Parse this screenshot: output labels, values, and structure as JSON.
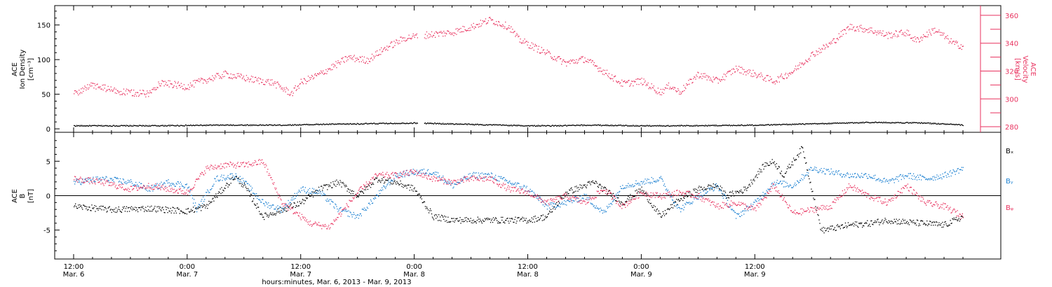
{
  "colors": {
    "black": "#000000",
    "red": "#e8325f",
    "blue": "#1e82d2"
  },
  "xaxis": {
    "title": "hours:minutes, Mar. 6, 2013 - Mar. 9, 2013",
    "ticks": [
      {
        "time": "12:00",
        "date": "Mar. 6"
      },
      {
        "time": "0:00",
        "date": "Mar. 7"
      },
      {
        "time": "12:00",
        "date": "Mar. 7"
      },
      {
        "time": "0:00",
        "date": "Mar. 8"
      },
      {
        "time": "12:00",
        "date": "Mar. 8"
      },
      {
        "time": "0:00",
        "date": "Mar. 9"
      },
      {
        "time": "12:00",
        "date": "Mar. 9"
      }
    ]
  },
  "chart_data": [
    {
      "type": "scatter",
      "xrange_hours": [
        -2.0,
        98.0
      ],
      "ylabel_left": [
        "ACE",
        "Ion Density",
        "[cm⁻³]"
      ],
      "ylabel_right": [
        "ACE",
        "Velocity",
        "[km/s]"
      ],
      "left_axis": {
        "ylim": [
          -5,
          178
        ],
        "ticks": [
          "0",
          "50",
          "100",
          "150"
        ]
      },
      "right_axis": {
        "ylim": [
          276,
          367
        ],
        "ticks": [
          "280",
          "300",
          "320",
          "340",
          "360"
        ]
      },
      "series": [
        {
          "axis": "left",
          "color": "black",
          "x_hours": [
            0,
            8,
            16,
            22,
            26,
            31,
            36,
            42,
            48,
            51,
            55,
            60,
            64,
            72,
            79,
            84,
            90,
            94
          ],
          "values": [
            5,
            5,
            6,
            6,
            7,
            8,
            9,
            7,
            5,
            5,
            6,
            5,
            5,
            6,
            8,
            10,
            9,
            6
          ]
        },
        {
          "axis": "right",
          "color": "red",
          "x_hours": [
            0,
            2,
            5,
            8,
            9,
            12,
            13,
            16,
            19,
            21,
            23,
            24,
            26,
            27,
            29,
            31,
            33,
            35,
            37,
            40,
            42,
            44,
            46,
            47,
            50,
            52,
            54,
            56,
            58,
            60,
            62,
            63,
            64,
            66,
            68,
            70,
            72,
            74,
            76,
            78,
            80,
            82,
            84,
            86,
            88,
            89,
            91,
            93,
            94
          ],
          "values": [
            304,
            310,
            305,
            304,
            312,
            309,
            312,
            318,
            314,
            312,
            304,
            312,
            318,
            322,
            330,
            328,
            337,
            344,
            346,
            348,
            352,
            357,
            352,
            343,
            333,
            326,
            329,
            320,
            311,
            313,
            305,
            310,
            305,
            318,
            313,
            322,
            318,
            313,
            320,
            332,
            340,
            352,
            350,
            346,
            348,
            342,
            350,
            340,
            338
          ]
        }
      ]
    },
    {
      "type": "scatter",
      "xrange_hours": [
        -2.0,
        98.0
      ],
      "ylabel_left": [
        "ACE",
        "B",
        "[nT]"
      ],
      "left_axis": {
        "ylim": [
          -9.2,
          9.2
        ],
        "ticks": [
          "-5",
          "0",
          "5"
        ]
      },
      "legend": [
        "Bₓ",
        "Bᵧ",
        "Bᵩ"
      ],
      "series": [
        {
          "name": "Bₓ",
          "color": "black",
          "x_hours": [
            0,
            4,
            8,
            12,
            14,
            17,
            18,
            20,
            22,
            24,
            26,
            28,
            30,
            32,
            34,
            36,
            38,
            40,
            44,
            48,
            50,
            52,
            55,
            58,
            60,
            62,
            64,
            66,
            68,
            69,
            71,
            73,
            74,
            75,
            77,
            79,
            81,
            82,
            84,
            86,
            88,
            90,
            92,
            94
          ],
          "values": [
            -1.5,
            -2.0,
            -1.8,
            -2.2,
            -1.5,
            2.8,
            1.5,
            -3.0,
            -2.0,
            -1.0,
            1.0,
            2.0,
            0.0,
            2.5,
            2.0,
            1.0,
            -3.0,
            -3.5,
            -3.5,
            -3.5,
            -3.0,
            0.5,
            2.0,
            -1.0,
            1.0,
            -3.0,
            -0.5,
            1.0,
            1.5,
            0.0,
            1.0,
            4.5,
            5.0,
            3.0,
            7.0,
            -5.0,
            -4.5,
            -4.2,
            -4.0,
            -3.5,
            -3.8,
            -4.0,
            -4.2,
            -3.0
          ]
        },
        {
          "name": "Bᵧ",
          "color": "blue",
          "x_hours": [
            0,
            3,
            6,
            8,
            10,
            12,
            13,
            15,
            17,
            18,
            20,
            22,
            24,
            26,
            28,
            30,
            32,
            34,
            36,
            38,
            40,
            42,
            44,
            46,
            48,
            50,
            52,
            54,
            56,
            58,
            60,
            62,
            64,
            66,
            68,
            70,
            72,
            74,
            76,
            78,
            80,
            82,
            84,
            86,
            88,
            90,
            92,
            94
          ],
          "values": [
            2.0,
            2.5,
            2.0,
            1.0,
            2.0,
            1.5,
            -2.0,
            2.5,
            3.0,
            2.0,
            -1.0,
            -2.0,
            1.0,
            0.5,
            -2.0,
            -3.0,
            0.0,
            3.0,
            3.5,
            3.5,
            1.5,
            3.0,
            3.0,
            2.0,
            1.0,
            -1.5,
            -1.0,
            0.0,
            -2.5,
            1.5,
            2.0,
            2.5,
            -2.0,
            0.0,
            1.5,
            -3.0,
            -1.0,
            2.0,
            1.5,
            4.0,
            3.5,
            3.0,
            3.0,
            2.0,
            3.0,
            2.5,
            3.0,
            4.0
          ]
        },
        {
          "name": "Bᵩ",
          "color": "red",
          "x_hours": [
            0,
            3,
            6,
            8,
            10,
            12,
            14,
            16,
            18,
            20,
            22,
            24,
            25,
            27,
            30,
            32,
            34,
            36,
            38,
            40,
            42,
            44,
            46,
            48,
            50,
            52,
            54,
            56,
            58,
            60,
            62,
            64,
            66,
            68,
            70,
            72,
            74,
            76,
            78,
            80,
            82,
            84,
            86,
            88,
            90,
            92,
            94
          ],
          "values": [
            2.5,
            2.0,
            1.0,
            1.5,
            1.0,
            0.5,
            4.0,
            4.5,
            4.5,
            5.0,
            -1.0,
            -3.0,
            -4.0,
            -4.5,
            0.5,
            3.0,
            3.0,
            3.5,
            2.5,
            2.0,
            2.5,
            2.5,
            1.0,
            0.5,
            -1.0,
            0.0,
            -1.0,
            1.0,
            -1.5,
            0.5,
            0.0,
            0.5,
            0.0,
            -1.5,
            -1.0,
            -2.0,
            1.5,
            -2.5,
            -2.0,
            -1.5,
            1.5,
            0.0,
            -1.0,
            1.5,
            -1.0,
            -1.5,
            -3.0
          ]
        }
      ]
    }
  ]
}
